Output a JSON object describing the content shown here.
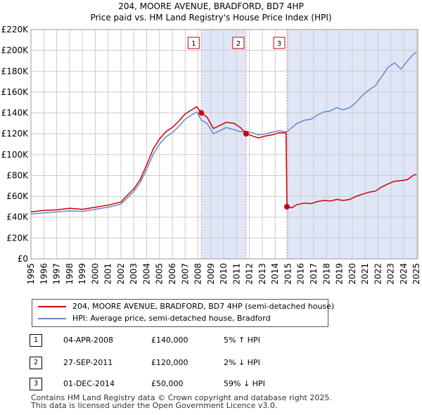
{
  "title": "204, MOORE AVENUE, BRADFORD, BD7 4HP",
  "subtitle": "Price paid vs. HM Land Registry's House Price Index (HPI)",
  "colors": {
    "property": "#cc0000",
    "hpi": "#6688cc",
    "shade": "#dfe6f7",
    "marker_line": "#e88888",
    "grid": "#cccccc",
    "marker_box_border": "#cc0000"
  },
  "legend": {
    "property_label": "204, MOORE AVENUE, BRADFORD, BD7 4HP (semi-detached house)",
    "hpi_label": "HPI: Average price, semi-detached house, Bradford"
  },
  "sales": [
    {
      "num": "1",
      "date": "04-APR-2008",
      "price": "£140,000",
      "hpi": "5% ↑ HPI"
    },
    {
      "num": "2",
      "date": "27-SEP-2011",
      "price": "£120,000",
      "hpi": "2% ↓ HPI"
    },
    {
      "num": "3",
      "date": "01-DEC-2014",
      "price": "£50,000",
      "hpi": "59% ↓ HPI"
    }
  ],
  "footer": {
    "line1": "Contains HM Land Registry data © Crown copyright and database right 2025.",
    "line2": "This data is licensed under the Open Government Licence v3.0."
  },
  "chart_data": {
    "type": "line",
    "xlim": [
      1995,
      2025.1
    ],
    "ylim": [
      0,
      220000
    ],
    "yticks": [
      0,
      20000,
      40000,
      60000,
      80000,
      100000,
      120000,
      140000,
      160000,
      180000,
      200000,
      220000
    ],
    "ytick_labels": [
      "£0",
      "£20K",
      "£40K",
      "£60K",
      "£80K",
      "£100K",
      "£120K",
      "£140K",
      "£160K",
      "£180K",
      "£200K",
      "£220K"
    ],
    "xticks": [
      1995,
      1996,
      1997,
      1998,
      1999,
      2000,
      2001,
      2002,
      2003,
      2004,
      2005,
      2006,
      2007,
      2008,
      2009,
      2010,
      2011,
      2012,
      2013,
      2014,
      2015,
      2016,
      2017,
      2018,
      2019,
      2020,
      2021,
      2022,
      2023,
      2024,
      2025
    ],
    "xtick_labels": [
      "1995",
      "1996",
      "1997",
      "1998",
      "1999",
      "2000",
      "2001",
      "2002",
      "2003",
      "2004",
      "2005",
      "2006",
      "2007",
      "2008",
      "2009",
      "2010",
      "2011",
      "2012",
      "2013",
      "2014",
      "2015",
      "2016",
      "2017",
      "2018",
      "2019",
      "2020",
      "2021",
      "2022",
      "2023",
      "2024",
      "2025"
    ],
    "shaded_ranges": [
      [
        2008.26,
        2011.74
      ],
      [
        2014.92,
        2025.1
      ]
    ],
    "sale_markers": [
      {
        "label": "1",
        "x": 2008.26,
        "y": 140000
      },
      {
        "label": "2",
        "x": 2011.74,
        "y": 120000
      },
      {
        "label": "3",
        "x": 2014.92,
        "y": 50000
      }
    ],
    "series": [
      {
        "name": "204, MOORE AVENUE, BRADFORD, BD7 4HP (semi-detached house)",
        "points": [
          [
            1995.0,
            45000
          ],
          [
            1996.0,
            46500
          ],
          [
            1997.0,
            47000
          ],
          [
            1998.0,
            48500
          ],
          [
            1999.0,
            47500
          ],
          [
            2000.0,
            49500
          ],
          [
            2001.0,
            51500
          ],
          [
            2002.0,
            54500
          ],
          [
            2002.5,
            61000
          ],
          [
            2003.0,
            67000
          ],
          [
            2003.5,
            76000
          ],
          [
            2004.0,
            90000
          ],
          [
            2004.5,
            105000
          ],
          [
            2005.0,
            115000
          ],
          [
            2005.5,
            122000
          ],
          [
            2006.0,
            126000
          ],
          [
            2006.5,
            132000
          ],
          [
            2007.0,
            139000
          ],
          [
            2007.5,
            143000
          ],
          [
            2007.9,
            146000
          ],
          [
            2008.26,
            140000
          ],
          [
            2008.7,
            136000
          ],
          [
            2009.2,
            125000
          ],
          [
            2009.7,
            128000
          ],
          [
            2010.2,
            131000
          ],
          [
            2010.8,
            130000
          ],
          [
            2011.3,
            126000
          ],
          [
            2011.74,
            120000
          ],
          [
            2012.2,
            118000
          ],
          [
            2012.7,
            116000
          ],
          [
            2013.3,
            118000
          ],
          [
            2013.8,
            119000
          ],
          [
            2014.3,
            121000
          ],
          [
            2014.85,
            121000
          ],
          [
            2014.92,
            50000
          ],
          [
            2015.3,
            49000
          ],
          [
            2015.7,
            52000
          ],
          [
            2016.3,
            53500
          ],
          [
            2016.8,
            53000
          ],
          [
            2017.3,
            55000
          ],
          [
            2017.8,
            56000
          ],
          [
            2018.3,
            55500
          ],
          [
            2018.8,
            57000
          ],
          [
            2019.3,
            56000
          ],
          [
            2019.8,
            57000
          ],
          [
            2020.3,
            60000
          ],
          [
            2020.8,
            62000
          ],
          [
            2021.3,
            64000
          ],
          [
            2021.8,
            65000
          ],
          [
            2022.3,
            69000
          ],
          [
            2022.8,
            72000
          ],
          [
            2023.3,
            74500
          ],
          [
            2023.8,
            75000
          ],
          [
            2024.3,
            76000
          ],
          [
            2024.8,
            80500
          ],
          [
            2025.0,
            81000
          ]
        ]
      },
      {
        "name": "HPI: Average price, semi-detached house, Bradford",
        "points": [
          [
            1995.0,
            43000
          ],
          [
            1996.0,
            44000
          ],
          [
            1997.0,
            45000
          ],
          [
            1998.0,
            46000
          ],
          [
            1999.0,
            45500
          ],
          [
            2000.0,
            47500
          ],
          [
            2001.0,
            49500
          ],
          [
            2002.0,
            52500
          ],
          [
            2002.5,
            58500
          ],
          [
            2003.0,
            64500
          ],
          [
            2003.5,
            73000
          ],
          [
            2004.0,
            86000
          ],
          [
            2004.5,
            100000
          ],
          [
            2005.0,
            110000
          ],
          [
            2005.5,
            117000
          ],
          [
            2006.0,
            121000
          ],
          [
            2006.5,
            127000
          ],
          [
            2007.0,
            134000
          ],
          [
            2007.5,
            138000
          ],
          [
            2007.9,
            141000
          ],
          [
            2008.26,
            133000
          ],
          [
            2008.7,
            130000
          ],
          [
            2009.2,
            120000
          ],
          [
            2009.7,
            123000
          ],
          [
            2010.2,
            126000
          ],
          [
            2010.8,
            124000
          ],
          [
            2011.3,
            122000
          ],
          [
            2011.74,
            122500
          ],
          [
            2012.2,
            121000
          ],
          [
            2012.7,
            119000
          ],
          [
            2013.3,
            120000
          ],
          [
            2013.8,
            121500
          ],
          [
            2014.3,
            123000
          ],
          [
            2014.92,
            122000
          ],
          [
            2015.3,
            126000
          ],
          [
            2015.7,
            130000
          ],
          [
            2016.3,
            133000
          ],
          [
            2016.8,
            134000
          ],
          [
            2017.3,
            138000
          ],
          [
            2017.8,
            141000
          ],
          [
            2018.3,
            142000
          ],
          [
            2018.8,
            145000
          ],
          [
            2019.3,
            143000
          ],
          [
            2019.8,
            145000
          ],
          [
            2020.3,
            150000
          ],
          [
            2020.8,
            157000
          ],
          [
            2021.3,
            162000
          ],
          [
            2021.8,
            166000
          ],
          [
            2022.3,
            175000
          ],
          [
            2022.8,
            184000
          ],
          [
            2023.3,
            188000
          ],
          [
            2023.8,
            182000
          ],
          [
            2024.3,
            190000
          ],
          [
            2024.8,
            197000
          ],
          [
            2025.0,
            198000
          ]
        ]
      }
    ]
  }
}
